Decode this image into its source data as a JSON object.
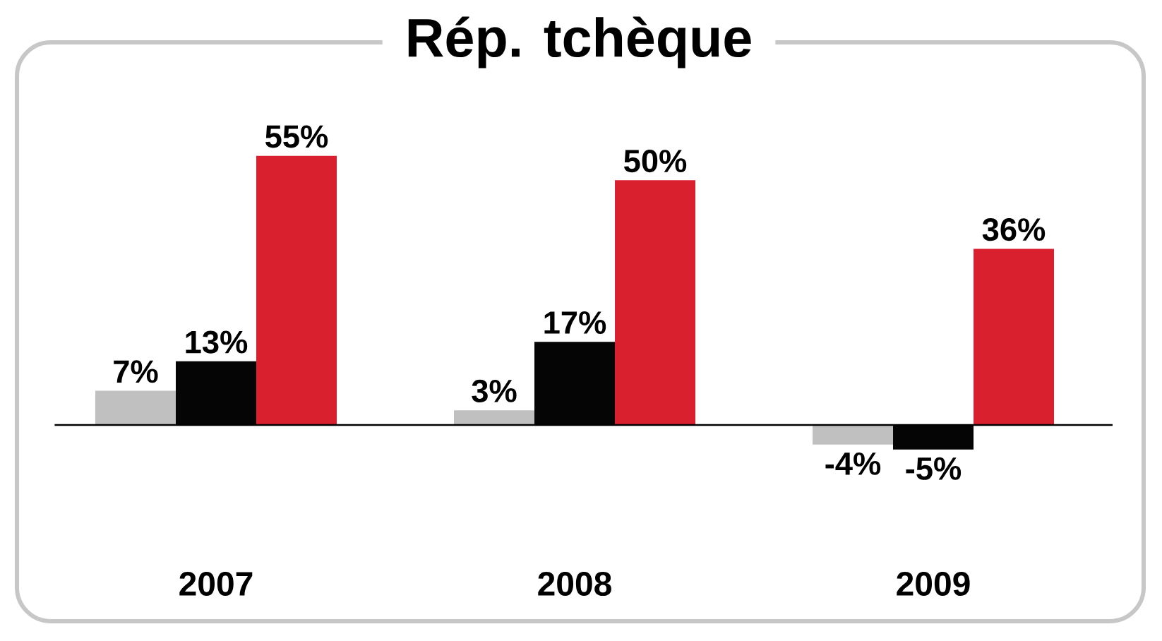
{
  "chart_data": {
    "type": "bar",
    "title": "Rép. tchèque",
    "categories": [
      "2007",
      "2008",
      "2009"
    ],
    "series": [
      {
        "color": "#c0c0c0",
        "values": [
          7,
          3,
          -4
        ],
        "value_labels": [
          "7%",
          "3%",
          "-4%"
        ]
      },
      {
        "color": "#050505",
        "values": [
          13,
          17,
          -5
        ],
        "value_labels": [
          "13%",
          "17%",
          "-5%"
        ]
      },
      {
        "color": "#d9202f",
        "values": [
          55,
          50,
          36
        ],
        "value_labels": [
          "55%",
          "50%",
          "36%"
        ]
      }
    ]
  }
}
